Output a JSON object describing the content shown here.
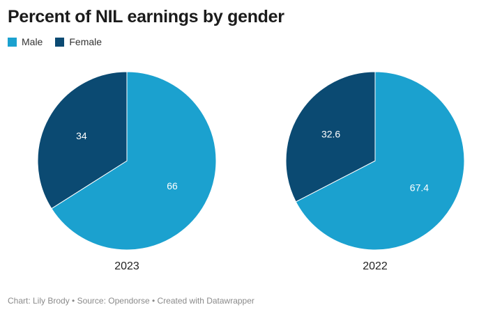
{
  "chart_data": {
    "type": "pie",
    "title": "Percent of NIL earnings by gender",
    "legend": {
      "placement": "top-left",
      "entries": [
        {
          "label": "Male",
          "color": "#1ba1cf"
        },
        {
          "label": "Female",
          "color": "#0b4a72"
        }
      ]
    },
    "pies": [
      {
        "label": "2023",
        "slices": [
          {
            "name": "Male",
            "value": 66,
            "label": "66",
            "color": "#1ba1cf"
          },
          {
            "name": "Female",
            "value": 34,
            "label": "34",
            "color": "#0b4a72"
          }
        ]
      },
      {
        "label": "2022",
        "slices": [
          {
            "name": "Male",
            "value": 67.4,
            "label": "67.4",
            "color": "#1ba1cf"
          },
          {
            "name": "Female",
            "value": 32.6,
            "label": "32.6",
            "color": "#0b4a72"
          }
        ]
      }
    ]
  },
  "footer": {
    "text": "Chart: Lily Brody • Source: Opendorse • Created with Datawrapper"
  }
}
